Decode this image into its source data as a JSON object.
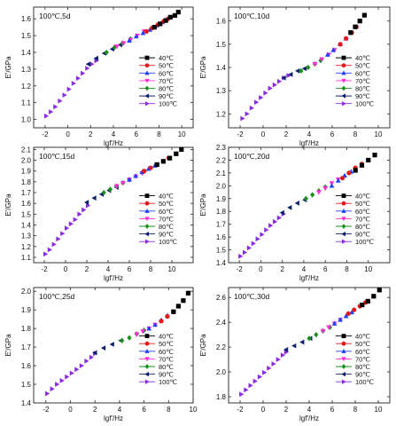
{
  "legend_labels": [
    "40℃",
    "50℃",
    "60℃",
    "70℃",
    "80℃",
    "90℃",
    "100℃"
  ],
  "series_colors": [
    "#000000",
    "#e31a1c",
    "#1f3fff",
    "#ff2bd6",
    "#1a8f1a",
    "#0b1f6b",
    "#8a2be2"
  ],
  "marker_shapes": [
    "square",
    "circle",
    "triangle-up",
    "triangle-down",
    "diamond",
    "triangle-left",
    "triangle-right"
  ],
  "chart_data": [
    {
      "type": "scatter",
      "title": "100℃,5d",
      "xlabel": "lgf'/Hz",
      "ylabel": "E'/GPa",
      "xlim": [
        -3,
        11
      ],
      "ylim": [
        0.95,
        1.67
      ],
      "xticks": [
        -2,
        0,
        2,
        4,
        6,
        8,
        10
      ],
      "yticks": [
        1.0,
        1.1,
        1.2,
        1.3,
        1.4,
        1.5,
        1.6
      ],
      "legend": "right-middle",
      "series": [
        {
          "name": "40℃",
          "x": [
            7.6,
            8.1,
            8.6,
            9.0,
            9.4,
            9.7
          ],
          "y": [
            1.55,
            1.57,
            1.59,
            1.61,
            1.62,
            1.64
          ]
        },
        {
          "name": "50℃",
          "x": [
            6.9,
            7.4,
            7.9,
            8.4,
            8.8
          ],
          "y": [
            1.525,
            1.545,
            1.565,
            1.585,
            1.6
          ]
        },
        {
          "name": "60℃",
          "x": [
            5.4,
            6.0,
            6.6,
            7.2,
            7.8,
            8.3
          ],
          "y": [
            1.47,
            1.495,
            1.515,
            1.535,
            1.56,
            1.58
          ]
        },
        {
          "name": "70℃",
          "x": [
            4.3,
            4.9,
            5.5,
            6.1,
            6.7
          ],
          "y": [
            1.435,
            1.455,
            1.475,
            1.5,
            1.525
          ]
        },
        {
          "name": "80℃",
          "x": [
            3.4,
            4.1,
            4.8,
            5.5
          ],
          "y": [
            1.4,
            1.43,
            1.455,
            1.48
          ]
        },
        {
          "name": "90℃",
          "x": [
            1.8,
            2.5,
            3.2,
            3.9,
            4.6
          ],
          "y": [
            1.33,
            1.365,
            1.395,
            1.42,
            1.445
          ]
        },
        {
          "name": "100℃",
          "x": [
            -1.9,
            -1.5,
            -1.1,
            -0.7,
            -0.3,
            0.1,
            0.5,
            0.9,
            1.3,
            1.7,
            2.1,
            2.5
          ],
          "y": [
            1.02,
            1.045,
            1.075,
            1.11,
            1.145,
            1.18,
            1.215,
            1.245,
            1.275,
            1.305,
            1.33,
            1.35
          ]
        }
      ]
    },
    {
      "type": "scatter",
      "title": "100℃,10d",
      "xlabel": "lgf'/Hz",
      "ylabel": "E'/GPa",
      "xlim": [
        -3,
        11
      ],
      "ylim": [
        1.14,
        1.66
      ],
      "xticks": [
        -2,
        0,
        2,
        4,
        6,
        8,
        10
      ],
      "yticks": [
        1.2,
        1.3,
        1.4,
        1.5,
        1.6
      ],
      "legend": "right-middle",
      "series": [
        {
          "name": "40℃",
          "x": [
            7.6,
            8.0,
            8.4,
            8.8
          ],
          "y": [
            1.55,
            1.575,
            1.6,
            1.625
          ]
        },
        {
          "name": "50℃",
          "x": [
            6.7,
            7.2,
            7.7,
            8.1
          ],
          "y": [
            1.5,
            1.525,
            1.55,
            1.575
          ]
        },
        {
          "name": "60℃",
          "x": [
            5.6,
            6.1,
            6.7,
            7.2
          ],
          "y": [
            1.455,
            1.475,
            1.5,
            1.525
          ]
        },
        {
          "name": "70℃",
          "x": [
            4.5,
            5.1,
            5.7,
            6.2
          ],
          "y": [
            1.415,
            1.435,
            1.455,
            1.475
          ]
        },
        {
          "name": "80℃",
          "x": [
            3.3,
            3.9,
            4.5,
            5.0
          ],
          "y": [
            1.385,
            1.4,
            1.415,
            1.43
          ]
        },
        {
          "name": "90℃",
          "x": [
            1.8,
            2.4,
            3.0,
            3.6
          ],
          "y": [
            1.355,
            1.37,
            1.385,
            1.395
          ]
        },
        {
          "name": "100℃",
          "x": [
            -1.8,
            -1.4,
            -1.0,
            -0.6,
            -0.2,
            0.2,
            0.6,
            1.0,
            1.4,
            1.8,
            2.2
          ],
          "y": [
            1.18,
            1.2,
            1.225,
            1.25,
            1.27,
            1.29,
            1.31,
            1.325,
            1.34,
            1.355,
            1.365
          ]
        }
      ]
    },
    {
      "type": "scatter",
      "title": "100℃,15d",
      "xlabel": "lgf'/Hz",
      "ylabel": "E'/GPa",
      "xlim": [
        -3,
        12
      ],
      "ylim": [
        1.05,
        2.12
      ],
      "xticks": [
        -2,
        0,
        2,
        4,
        6,
        8,
        10
      ],
      "yticks": [
        1.1,
        1.2,
        1.3,
        1.4,
        1.5,
        1.6,
        1.7,
        1.8,
        1.9,
        2.0,
        2.1
      ],
      "legend": "right-middle",
      "series": [
        {
          "name": "40℃",
          "x": [
            8.6,
            9.2,
            9.8,
            10.4,
            10.9
          ],
          "y": [
            1.96,
            1.99,
            2.02,
            2.06,
            2.1
          ]
        },
        {
          "name": "50℃",
          "x": [
            7.4,
            8.0,
            8.6,
            9.2,
            9.7
          ],
          "y": [
            1.9,
            1.93,
            1.96,
            1.99,
            2.02
          ]
        },
        {
          "name": "60℃",
          "x": [
            6.0,
            6.6,
            7.2,
            7.8,
            8.4
          ],
          "y": [
            1.82,
            1.855,
            1.89,
            1.92,
            1.95
          ]
        },
        {
          "name": "70℃",
          "x": [
            4.8,
            5.4,
            6.0,
            6.6,
            7.2
          ],
          "y": [
            1.76,
            1.79,
            1.82,
            1.85,
            1.88
          ]
        },
        {
          "name": "80℃",
          "x": [
            3.6,
            4.2,
            4.8,
            5.4,
            6.0
          ],
          "y": [
            1.7,
            1.73,
            1.76,
            1.79,
            1.82
          ]
        },
        {
          "name": "90℃",
          "x": [
            2.0,
            2.7,
            3.4,
            4.1,
            4.8
          ],
          "y": [
            1.61,
            1.65,
            1.685,
            1.72,
            1.75
          ]
        },
        {
          "name": "100℃",
          "x": [
            -1.9,
            -1.5,
            -1.1,
            -0.7,
            -0.3,
            0.1,
            0.5,
            0.9,
            1.3,
            1.7,
            2.1
          ],
          "y": [
            1.13,
            1.17,
            1.22,
            1.27,
            1.32,
            1.37,
            1.41,
            1.45,
            1.5,
            1.54,
            1.58
          ]
        }
      ]
    },
    {
      "type": "scatter",
      "title": "100℃,20d",
      "xlabel": "lgf'/Hz",
      "ylabel": "E'/GPa",
      "xlim": [
        -3,
        12
      ],
      "ylim": [
        1.4,
        2.3
      ],
      "xticks": [
        -2,
        0,
        2,
        4,
        6,
        8,
        10
      ],
      "yticks": [
        1.4,
        1.5,
        1.6,
        1.7,
        1.8,
        1.9,
        2.0,
        2.1,
        2.2,
        2.3
      ],
      "legend": "right-middle",
      "series": [
        {
          "name": "40℃",
          "x": [
            8.8,
            9.4,
            10.0,
            10.6
          ],
          "y": [
            2.12,
            2.16,
            2.2,
            2.24
          ]
        },
        {
          "name": "50℃",
          "x": [
            7.6,
            8.2,
            8.8,
            9.4
          ],
          "y": [
            2.06,
            2.1,
            2.14,
            2.17
          ]
        },
        {
          "name": "60℃",
          "x": [
            6.6,
            7.2,
            7.8,
            8.4
          ],
          "y": [
            2.0,
            2.04,
            2.08,
            2.11
          ]
        },
        {
          "name": "70℃",
          "x": [
            5.4,
            6.0,
            6.6,
            7.2
          ],
          "y": [
            1.95,
            1.98,
            2.02,
            2.05
          ]
        },
        {
          "name": "80℃",
          "x": [
            4.2,
            4.8,
            5.4,
            6.0
          ],
          "y": [
            1.9,
            1.93,
            1.96,
            1.99
          ]
        },
        {
          "name": "90℃",
          "x": [
            2.0,
            2.7,
            3.4,
            4.1
          ],
          "y": [
            1.79,
            1.83,
            1.865,
            1.89
          ]
        },
        {
          "name": "100℃",
          "x": [
            -1.9,
            -1.5,
            -1.1,
            -0.7,
            -0.3,
            0.1,
            0.5,
            0.9,
            1.3,
            1.7,
            2.1
          ],
          "y": [
            1.45,
            1.48,
            1.515,
            1.55,
            1.585,
            1.62,
            1.655,
            1.69,
            1.72,
            1.75,
            1.78
          ]
        }
      ]
    },
    {
      "type": "scatter",
      "title": "100℃,25d",
      "xlabel": "lgf'/Hz",
      "ylabel": "E'/GPa",
      "xlim": [
        -3,
        10
      ],
      "ylim": [
        1.4,
        2.02
      ],
      "xticks": [
        -2,
        0,
        2,
        4,
        6,
        8,
        10
      ],
      "yticks": [
        1.4,
        1.5,
        1.6,
        1.7,
        1.8,
        1.9,
        2.0
      ],
      "legend": "right-middle",
      "series": [
        {
          "name": "40℃",
          "x": [
            8.4,
            8.8,
            9.2,
            9.6
          ],
          "y": [
            1.89,
            1.92,
            1.95,
            1.99
          ]
        },
        {
          "name": "50℃",
          "x": [
            7.4,
            7.9,
            8.4,
            8.8
          ],
          "y": [
            1.84,
            1.865,
            1.89,
            1.92
          ]
        },
        {
          "name": "60℃",
          "x": [
            6.4,
            6.9,
            7.4,
            7.9
          ],
          "y": [
            1.8,
            1.82,
            1.845,
            1.87
          ]
        },
        {
          "name": "70℃",
          "x": [
            5.4,
            5.9,
            6.4,
            6.9
          ],
          "y": [
            1.77,
            1.785,
            1.8,
            1.82
          ]
        },
        {
          "name": "80℃",
          "x": [
            4.2,
            4.8,
            5.4,
            6.0
          ],
          "y": [
            1.735,
            1.75,
            1.77,
            1.79
          ]
        },
        {
          "name": "90℃",
          "x": [
            2.0,
            2.7,
            3.4,
            4.1
          ],
          "y": [
            1.67,
            1.695,
            1.715,
            1.735
          ]
        },
        {
          "name": "100℃",
          "x": [
            -1.9,
            -1.5,
            -1.1,
            -0.7,
            -0.3,
            0.1,
            0.5,
            0.9,
            1.3,
            1.7,
            2.0
          ],
          "y": [
            1.45,
            1.475,
            1.5,
            1.52,
            1.54,
            1.56,
            1.58,
            1.6,
            1.625,
            1.645,
            1.665
          ]
        }
      ]
    },
    {
      "type": "scatter",
      "title": "100℃,30d",
      "xlabel": "lgf'/Hz",
      "ylabel": "E'/GPa",
      "xlim": [
        -3,
        11
      ],
      "ylim": [
        1.75,
        2.68
      ],
      "xticks": [
        -2,
        0,
        2,
        4,
        6,
        8,
        10
      ],
      "yticks": [
        1.8,
        2.0,
        2.2,
        2.4,
        2.6
      ],
      "legend": "right-middle",
      "series": [
        {
          "name": "40℃",
          "x": [
            8.6,
            9.1,
            9.6,
            10.1
          ],
          "y": [
            2.54,
            2.57,
            2.61,
            2.66
          ]
        },
        {
          "name": "50℃",
          "x": [
            7.4,
            7.9,
            8.4,
            8.9
          ],
          "y": [
            2.47,
            2.5,
            2.53,
            2.56
          ]
        },
        {
          "name": "60℃",
          "x": [
            6.2,
            6.7,
            7.2,
            7.7
          ],
          "y": [
            2.39,
            2.42,
            2.45,
            2.48
          ]
        },
        {
          "name": "70℃",
          "x": [
            5.2,
            5.7,
            6.2,
            6.7
          ],
          "y": [
            2.33,
            2.36,
            2.39,
            2.42
          ]
        },
        {
          "name": "80℃",
          "x": [
            4.0,
            4.6,
            5.2,
            5.8
          ],
          "y": [
            2.27,
            2.3,
            2.33,
            2.36
          ]
        },
        {
          "name": "90℃",
          "x": [
            2.0,
            2.7,
            3.4,
            4.1
          ],
          "y": [
            2.18,
            2.21,
            2.24,
            2.27
          ]
        },
        {
          "name": "100℃",
          "x": [
            -1.9,
            -1.5,
            -1.1,
            -0.7,
            -0.3,
            0.1,
            0.5,
            0.9,
            1.3,
            1.7,
            2.0
          ],
          "y": [
            1.82,
            1.855,
            1.89,
            1.925,
            1.96,
            1.995,
            2.03,
            2.065,
            2.1,
            2.135,
            2.16
          ]
        }
      ]
    }
  ]
}
